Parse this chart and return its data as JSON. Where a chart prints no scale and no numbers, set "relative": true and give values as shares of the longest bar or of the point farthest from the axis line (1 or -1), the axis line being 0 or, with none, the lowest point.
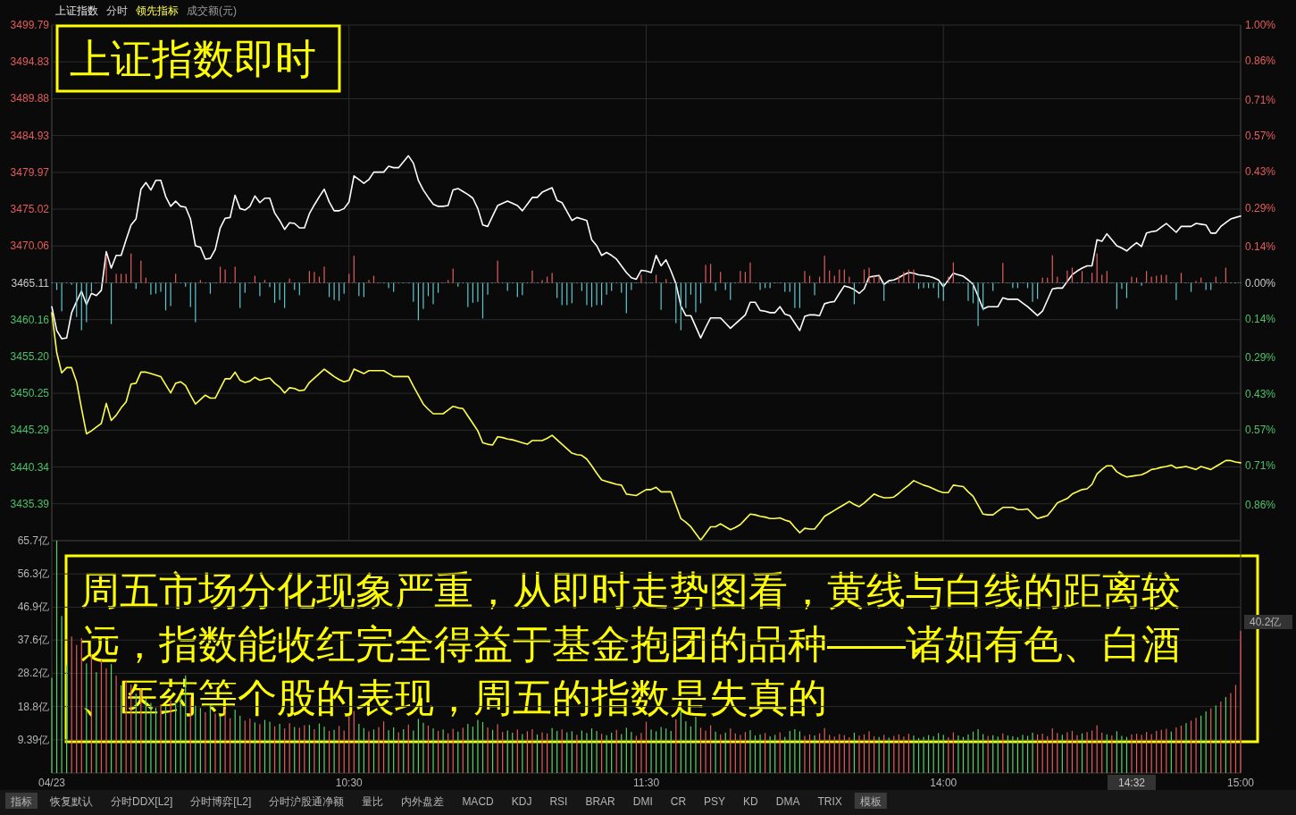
{
  "chart_data": [
    {
      "type": "line",
      "title": "上证指数即时",
      "subtitle": "分时",
      "grid": true,
      "tick_labels": "y",
      "categories": [
        null,
        null,
        null,
        null,
        null,
        null,
        null,
        null,
        null,
        null,
        null,
        null,
        null,
        null,
        null,
        null,
        null,
        null,
        null,
        null,
        null,
        null,
        null,
        null,
        null,
        null,
        null,
        null,
        null,
        null,
        null,
        null,
        null,
        null,
        null,
        null,
        null,
        null,
        null,
        null,
        null,
        null,
        null,
        null,
        null,
        null,
        null,
        null,
        null,
        null,
        null,
        null,
        null,
        null,
        null,
        null,
        null,
        null,
        null,
        null,
        null,
        null,
        null,
        null,
        null,
        null,
        null,
        null,
        null,
        null,
        null,
        null,
        null,
        null,
        null,
        null,
        null,
        null,
        null,
        null,
        null,
        null,
        null,
        null,
        null,
        null,
        null,
        null,
        null,
        null,
        null,
        null,
        null,
        null,
        null,
        null,
        null,
        null,
        null,
        null,
        null,
        null,
        null,
        null,
        null,
        null,
        null,
        null,
        null,
        null,
        null,
        null,
        null,
        null,
        null,
        null,
        null,
        null,
        null,
        null,
        null,
        null,
        null,
        null,
        null,
        null,
        null,
        null,
        null,
        null,
        null,
        null,
        null,
        null,
        null,
        null,
        null,
        null,
        null,
        null,
        null,
        null,
        null,
        null,
        null,
        null,
        null,
        null,
        null,
        null,
        null,
        null,
        null,
        null,
        null,
        null,
        null,
        null,
        null,
        null,
        null,
        null,
        null,
        null,
        null,
        null,
        null,
        null,
        null,
        null,
        null,
        null,
        null,
        null,
        null,
        null,
        null,
        null,
        null,
        null,
        null,
        null,
        null,
        null,
        null,
        null,
        null,
        null,
        null,
        null,
        null,
        null,
        null,
        null,
        null,
        null,
        null,
        null,
        null,
        null,
        null,
        null,
        null,
        null,
        null,
        null,
        null,
        null,
        null,
        null,
        null,
        null,
        null,
        null,
        null,
        null,
        null,
        null,
        null,
        null,
        null,
        null,
        null,
        null,
        null,
        null,
        null,
        null,
        null,
        null,
        null,
        null,
        null,
        null,
        null,
        null,
        null,
        null,
        null,
        null,
        null
      ],
      "ylim": [
        3430.43,
        3499.79
      ],
      "yticks": [
        3435.39,
        3440.34,
        3445.29,
        3450.25,
        {
          "value": 3455.2,
          "label": "3455.20"
        },
        3460.16,
        3465.11,
        3470.06,
        3475.02,
        3479.97,
        3484.93,
        3489.88,
        3494.83,
        3499.79
      ],
      "y2lim": [
        -1.0,
        1.0
      ],
      "y2ticks": [
        {
          "value": -0.86,
          "label": "0.86%"
        },
        {
          "value": -0.71,
          "label": "0.71%"
        },
        {
          "value": -0.57,
          "label": "0.57%"
        },
        {
          "value": -0.43,
          "label": "0.43%"
        },
        {
          "value": -0.29,
          "label": "0.29%"
        },
        {
          "value": -0.14,
          "label": "0.14%"
        },
        {
          "value": 0,
          "label": "0.00%"
        },
        {
          "value": 0.14,
          "label": "0.14%"
        },
        {
          "value": 0.29,
          "label": "0.29%"
        },
        {
          "value": 0.43,
          "label": "0.43%"
        },
        {
          "value": 0.57,
          "label": "0.57%"
        },
        {
          "value": 0.71,
          "label": "0.71%"
        },
        {
          "value": 0.86,
          "label": "0.86%"
        },
        {
          "value": 1.0,
          "label": "1.00%"
        }
      ],
      "annotations": [
        "周五市场分化现象严重，从即时走势图看，黄线与白线的距离较远，指数能收红完全得益于基金抱团的品种——诸如有色、白酒、医药等个股的表现，周五的指数是失真的",
        "成交额(元)"
      ],
      "series": [
        {
          "name": "上证指数",
          "color": "#ffffff",
          "values": [
            3461.9,
            3458.7,
            3457.6,
            3457.7,
            3461.1,
            3462.6,
            3464.0,
            3462.2,
            3463.7,
            3463.4,
            3464.1,
            3469.3,
            3467.1,
            3468.8,
            3468.8,
            3470.9,
            3472.9,
            3473.7,
            3477.7,
            3478.6,
            3477.6,
            3478.9,
            3478.9,
            3476.7,
            3475.4,
            3476.1,
            3475.4,
            3475.3,
            3473.7,
            3470.1,
            3469.9,
            3468.3,
            3468.4,
            3469.6,
            3472.5,
            3473.8,
            3473.9,
            3476.9,
            3475.1,
            3474.9,
            3475.4,
            3476.8,
            3475.9,
            3476.5,
            3476.5,
            3474.5,
            3473.5,
            3472.3,
            3473.2,
            3473.1,
            3472.5,
            3472.5,
            3474.4,
            3475.6,
            3476.7,
            3477.7,
            3476.0,
            3474.8,
            3474.8,
            3475.1,
            3476.0,
            3479.5,
            3479.0,
            3478.5,
            3479.0,
            3480.0,
            3480.0,
            3480.0,
            3480.8,
            3480.6,
            3480.6,
            3481.4,
            3482.2,
            3481.2,
            3478.9,
            3477.6,
            3476.6,
            3475.7,
            3475.4,
            3475.4,
            3475.5,
            3477.6,
            3477.8,
            3477.4,
            3477.0,
            3476.5,
            3475.1,
            3472.9,
            3472.7,
            3474.1,
            3475.5,
            3475.8,
            3476.1,
            3475.8,
            3475.5,
            3474.8,
            3475.7,
            3476.6,
            3476.6,
            3477.3,
            3477.6,
            3477.9,
            3476.2,
            3475.9,
            3474.7,
            3473.5,
            3473.9,
            3473.7,
            3473.5,
            3470.9,
            3470.1,
            3468.8,
            3469.2,
            3468.8,
            3468.3,
            3467.4,
            3466.5,
            3465.8,
            3465.6,
            3466.8,
            3466.7,
            3466.5,
            3468.8,
            3467.4,
            3468.2,
            3466.7,
            3465.0,
            3462.0,
            3460.7,
            3460.7,
            3459.2,
            3457.7,
            3459.1,
            3460.4,
            3460.4,
            3460.4,
            3459.7,
            3459.0,
            3459.6,
            3460.2,
            3460.8,
            3462.5,
            3462.5,
            3461.4,
            3461.3,
            3461.1,
            3461.1,
            3461.9,
            3460.9,
            3460.7,
            3459.7,
            3458.7,
            3460.6,
            3460.8,
            3460.8,
            3460.7,
            3462.3,
            3462.5,
            3462.6,
            3463.7,
            3464.7,
            3464.5,
            3464.2,
            3463.7,
            3464.3,
            3465.9,
            3466.0,
            3466.1,
            3464.9,
            3465.4,
            3465.5,
            3465.8,
            3466.2,
            3466.5,
            3466.4,
            3466.2,
            3466.1,
            3466.0,
            3465.8,
            3465.5,
            3464.6,
            3465.5,
            3466.4,
            3466.2,
            3466.0,
            3465.5,
            3464.9,
            3463.3,
            3461.6,
            3461.9,
            3461.9,
            3461.9,
            3463.1,
            3462.9,
            3462.9,
            3462.9,
            3462.4,
            3461.9,
            3461.3,
            3460.7,
            3461.3,
            3462.8,
            3464.3,
            3464.4,
            3464.4,
            3465.3,
            3466.2,
            3466.7,
            3467.1,
            3467.4,
            3467.4,
            3470.9,
            3470.7,
            3471.7,
            3470.9,
            3470.1,
            3469.8,
            3469.4,
            3470.0,
            3470.5,
            3470.0,
            3471.8,
            3472.0,
            3472.1,
            3472.6,
            3473.1,
            3472.5,
            3471.9,
            3472.7,
            3472.7,
            3472.7,
            3473.1,
            3473.0,
            3472.9,
            3471.8,
            3471.8,
            3472.7,
            3473.2,
            3473.7,
            3473.9,
            3474.1
          ]
        },
        {
          "name": "领先指标",
          "color": "#ffff4d",
          "values": [
            3461.1,
            3455.7,
            3453.0,
            3453.7,
            3453.7,
            3451.8,
            3448.2,
            3444.8,
            3445.2,
            3445.7,
            3446.2,
            3448.9,
            3446.6,
            3447.3,
            3448.3,
            3449.1,
            3451.5,
            3451.6,
            3453.1,
            3453.1,
            3452.9,
            3452.7,
            3452.5,
            3451.4,
            3450.3,
            3451.6,
            3451.8,
            3451.3,
            3450.0,
            3448.8,
            3449.4,
            3450.0,
            3449.6,
            3449.6,
            3450.9,
            3452.2,
            3452.2,
            3453.1,
            3452.0,
            3451.7,
            3451.9,
            3452.4,
            3452.0,
            3452.2,
            3452.3,
            3451.6,
            3451.1,
            3450.3,
            3451.0,
            3450.9,
            3450.6,
            3450.7,
            3451.7,
            3452.3,
            3452.9,
            3453.5,
            3453.0,
            3452.5,
            3452.1,
            3451.8,
            3452.0,
            3453.5,
            3453.2,
            3452.9,
            3453.3,
            3453.3,
            3453.3,
            3453.3,
            3452.9,
            3452.5,
            3452.5,
            3452.5,
            3452.5,
            3451.2,
            3450.0,
            3448.8,
            3448.1,
            3447.5,
            3447.5,
            3447.5,
            3448.0,
            3448.5,
            3448.3,
            3448.2,
            3447.2,
            3446.2,
            3445.2,
            3443.6,
            3443.4,
            3443.3,
            3444.4,
            3444.3,
            3444.1,
            3444.0,
            3443.8,
            3443.6,
            3443.4,
            3443.9,
            3443.9,
            3443.9,
            3444.2,
            3444.6,
            3444.0,
            3443.4,
            3442.8,
            3442.2,
            3442.0,
            3441.9,
            3441.4,
            3440.5,
            3439.5,
            3438.6,
            3438.4,
            3438.2,
            3438.0,
            3437.9,
            3436.7,
            3436.6,
            3436.5,
            3436.9,
            3437.3,
            3437.3,
            3437.6,
            3437.0,
            3437.0,
            3437.0,
            3435.2,
            3433.4,
            3432.9,
            3432.3,
            3431.4,
            3430.5,
            3431.4,
            3432.3,
            3432.3,
            3432.7,
            3432.3,
            3431.9,
            3432.2,
            3432.6,
            3433.3,
            3434.0,
            3433.9,
            3433.7,
            3433.6,
            3433.4,
            3433.4,
            3433.5,
            3433.2,
            3433.0,
            3432.2,
            3431.5,
            3432.1,
            3432.0,
            3432.0,
            3432.8,
            3433.7,
            3434.1,
            3434.5,
            3434.9,
            3435.3,
            3435.7,
            3435.3,
            3435.0,
            3435.5,
            3436.1,
            3436.7,
            3436.4,
            3436.2,
            3436.2,
            3436.3,
            3436.8,
            3437.4,
            3437.9,
            3438.5,
            3438.2,
            3437.9,
            3437.7,
            3437.4,
            3437.1,
            3436.9,
            3436.9,
            3437.9,
            3437.8,
            3437.7,
            3437.0,
            3436.4,
            3435.2,
            3434.0,
            3433.9,
            3433.9,
            3434.4,
            3434.9,
            3434.9,
            3434.9,
            3434.6,
            3434.6,
            3434.7,
            3434.0,
            3433.4,
            3433.6,
            3433.8,
            3434.6,
            3435.5,
            3435.8,
            3436.1,
            3436.7,
            3437.0,
            3437.3,
            3437.4,
            3438.0,
            3439.4,
            3440.0,
            3440.5,
            3440.5,
            3439.7,
            3439.3,
            3439.0,
            3439.1,
            3439.2,
            3439.3,
            3439.6,
            3440.0,
            3440.1,
            3440.3,
            3440.4,
            3440.6,
            3440.2,
            3440.3,
            3440.4,
            3440.2,
            3440.0,
            3440.4,
            3440.2,
            3440.0,
            3440.4,
            3440.8,
            3441.2,
            3441.2,
            3441.0,
            3440.9
          ]
        }
      ]
    },
    {
      "type": "bar",
      "relative": true,
      "categories": [
        null,
        null,
        null,
        null,
        null,
        null,
        null,
        null,
        null,
        null,
        null,
        null,
        null,
        null,
        null,
        null,
        null,
        null,
        null,
        null,
        null,
        null,
        null,
        null,
        null,
        null,
        null,
        null,
        null,
        null,
        null,
        null,
        null,
        null,
        null,
        null,
        null,
        null,
        null,
        null,
        null,
        null,
        null,
        null,
        null,
        null,
        null,
        null,
        null,
        null,
        null,
        null,
        null,
        null,
        null,
        null,
        null,
        null,
        null,
        null,
        null,
        null,
        null,
        null,
        null,
        null,
        null,
        null,
        null,
        null,
        null,
        null,
        null,
        null,
        null,
        null,
        null,
        null,
        null,
        null,
        null,
        null,
        null,
        null,
        null,
        null,
        null,
        null,
        null,
        null,
        null,
        null,
        null,
        null,
        null,
        null,
        null,
        null,
        null,
        null,
        null,
        null,
        null,
        null,
        null,
        null,
        null,
        null,
        null,
        null,
        null,
        null,
        null,
        null,
        null,
        null,
        null,
        null,
        null,
        null,
        null,
        null,
        null,
        null,
        null,
        null,
        null,
        null,
        null,
        null,
        null,
        null,
        null,
        null,
        null,
        null,
        null,
        null,
        null,
        null,
        null,
        null,
        null,
        null,
        null,
        null,
        null,
        null,
        null,
        null,
        null,
        null,
        null,
        null,
        null,
        null,
        null,
        null,
        null,
        null,
        null,
        null,
        null,
        null,
        null,
        null,
        null,
        null,
        null,
        null,
        null,
        null,
        null,
        null,
        null,
        null,
        null,
        null,
        null,
        null,
        null,
        null,
        null,
        null,
        null,
        null,
        null,
        null,
        null,
        null,
        null,
        null,
        null,
        null,
        null,
        null,
        null,
        null,
        null,
        null,
        null,
        null,
        null,
        null,
        null,
        null,
        null,
        null,
        null,
        null,
        null,
        null,
        null,
        null,
        null,
        null,
        null,
        null,
        null,
        null,
        null,
        null,
        null,
        null,
        null,
        null,
        null,
        null,
        null,
        null,
        null,
        null,
        null,
        null,
        null,
        null,
        null,
        null,
        null,
        null,
        null
      ],
      "values": [
        0,
        -0.15,
        -0.6,
        0,
        -0.04,
        -0.72,
        -1,
        -0.83,
        -0.19,
        0,
        0,
        0.57,
        -0.87,
        0.19,
        0.19,
        0.19,
        0.62,
        -0.13,
        0.47,
        0.11,
        -0.25,
        -0.23,
        -0.19,
        -0.58,
        -0.49,
        0.19,
        0,
        -0.08,
        -0.51,
        -0.83,
        0.06,
        0,
        -0.23,
        0,
        0.34,
        0.28,
        0,
        0.34,
        -0.53,
        -0.21,
        0,
        0.15,
        -0.28,
        0.06,
        -0.09,
        -0.42,
        -0.36,
        -0.53,
        0.09,
        -0.15,
        -0.26,
        0,
        0.25,
        0.23,
        0.13,
        0.34,
        -0.3,
        -0.36,
        -0.38,
        -0.23,
        0.19,
        0.57,
        -0.28,
        -0.3,
        0.06,
        0.15,
        0,
        0,
        -0.11,
        -0.19,
        0,
        0,
        0,
        -0.4,
        -0.79,
        -0.55,
        -0.28,
        -0.45,
        -0.21,
        0,
        0.06,
        0.3,
        -0.08,
        0,
        -0.51,
        -0.42,
        -0.4,
        -0.75,
        -0.25,
        0,
        0.47,
        0,
        -0.17,
        0,
        -0.3,
        -0.26,
        0,
        0.26,
        0,
        0.06,
        0.13,
        0.21,
        -0.32,
        -0.47,
        -0.47,
        -0.43,
        0,
        -0.17,
        -0.47,
        -0.51,
        -0.47,
        -0.47,
        -0.25,
        -0.17,
        0,
        -0.21,
        -0.64,
        -0.15,
        0,
        0.17,
        0,
        0,
        0.17,
        -0.57,
        0.08,
        0,
        -0.85,
        -1,
        -0.53,
        -0.25,
        -0.62,
        -0.43,
        0.38,
        0.4,
        -0.17,
        0.23,
        -0.15,
        -0.36,
        0,
        0.25,
        0.23,
        0.43,
        0,
        -0.15,
        -0.11,
        -0.11,
        0,
        0,
        -0.19,
        -0.19,
        -0.53,
        -0.53,
        0.25,
        0.15,
        -0.26,
        0.13,
        0.57,
        0.26,
        0.15,
        0.28,
        0.28,
        0.13,
        -0.45,
        0,
        0.28,
        0.32,
        0.15,
        0.15,
        -0.38,
        0,
        0,
        0.15,
        0.23,
        0.28,
        0.28,
        -0.13,
        -0.11,
        -0.11,
        -0.11,
        -0.32,
        -0.38,
        0.13,
        0.43,
        0,
        0,
        -0.38,
        -0.43,
        -0.91,
        -0.58,
        0,
        -0.17,
        0,
        0.42,
        0,
        -0.11,
        -0.11,
        0,
        -0.11,
        -0.4,
        -0.34,
        0.11,
        0.11,
        0.58,
        0.13,
        0,
        0.26,
        0.32,
        0,
        0.25,
        0,
        0.21,
        0.62,
        0.17,
        0.25,
        0,
        -0.55,
        -0.13,
        -0.32,
        0.13,
        0.11,
        -0.06,
        0.25,
        0.13,
        0.15,
        0.17,
        0.17,
        0,
        -0.36,
        0.21,
        0,
        -0.19,
        0.04,
        0.11,
        -0.15,
        -0.15,
        0.13,
        0,
        0.32,
        0,
        0,
        0
      ],
      "colors": [
        "#5fc8cf",
        "#5fc8cf",
        "#5fc8cf",
        "#5fc8cf",
        "#5fc8cf",
        "#5fc8cf",
        "#5fc8cf",
        "#5fc8cf",
        "#5fc8cf",
        "#5fc8cf",
        "#5fc8cf",
        "#e35d5d",
        "#5fc8cf",
        "#e35d5d",
        "#e35d5d",
        "#e35d5d",
        "#e35d5d",
        "#5fc8cf",
        "#e35d5d",
        "#e35d5d",
        "#5fc8cf",
        "#5fc8cf",
        "#5fc8cf",
        "#5fc8cf",
        "#5fc8cf",
        "#e35d5d",
        "#5fc8cf",
        "#5fc8cf",
        "#5fc8cf",
        "#5fc8cf",
        "#e35d5d",
        "#5fc8cf",
        "#5fc8cf",
        "#5fc8cf",
        "#e35d5d",
        "#e35d5d",
        "#5fc8cf",
        "#e35d5d",
        "#5fc8cf",
        "#5fc8cf",
        "#5fc8cf",
        "#e35d5d",
        "#5fc8cf",
        "#e35d5d",
        "#5fc8cf",
        "#5fc8cf",
        "#5fc8cf",
        "#5fc8cf",
        "#e35d5d",
        "#5fc8cf",
        "#5fc8cf",
        "#5fc8cf",
        "#e35d5d",
        "#e35d5d",
        "#e35d5d",
        "#e35d5d",
        "#5fc8cf",
        "#5fc8cf",
        "#5fc8cf",
        "#5fc8cf",
        "#e35d5d",
        "#e35d5d",
        "#5fc8cf",
        "#5fc8cf",
        "#e35d5d",
        "#e35d5d",
        "#5fc8cf",
        "#5fc8cf",
        "#5fc8cf",
        "#5fc8cf",
        "#5fc8cf",
        "#5fc8cf",
        "#5fc8cf",
        "#5fc8cf",
        "#5fc8cf",
        "#5fc8cf",
        "#5fc8cf",
        "#5fc8cf",
        "#5fc8cf",
        "#5fc8cf",
        "#e35d5d",
        "#e35d5d",
        "#5fc8cf",
        "#5fc8cf",
        "#5fc8cf",
        "#5fc8cf",
        "#5fc8cf",
        "#5fc8cf",
        "#5fc8cf",
        "#5fc8cf",
        "#e35d5d",
        "#5fc8cf",
        "#5fc8cf",
        "#5fc8cf",
        "#5fc8cf",
        "#5fc8cf",
        "#5fc8cf",
        "#e35d5d",
        "#5fc8cf",
        "#e35d5d",
        "#e35d5d",
        "#e35d5d",
        "#5fc8cf",
        "#5fc8cf",
        "#5fc8cf",
        "#5fc8cf",
        "#5fc8cf",
        "#5fc8cf",
        "#5fc8cf",
        "#5fc8cf",
        "#5fc8cf",
        "#5fc8cf",
        "#5fc8cf",
        "#5fc8cf",
        "#5fc8cf",
        "#5fc8cf",
        "#5fc8cf",
        "#5fc8cf",
        "#5fc8cf",
        "#e35d5d",
        "#5fc8cf",
        "#5fc8cf",
        "#e35d5d",
        "#5fc8cf",
        "#e35d5d",
        "#5fc8cf",
        "#5fc8cf",
        "#5fc8cf",
        "#5fc8cf",
        "#5fc8cf",
        "#5fc8cf",
        "#5fc8cf",
        "#e35d5d",
        "#e35d5d",
        "#5fc8cf",
        "#e35d5d",
        "#5fc8cf",
        "#5fc8cf",
        "#5fc8cf",
        "#e35d5d",
        "#e35d5d",
        "#e35d5d",
        "#5fc8cf",
        "#5fc8cf",
        "#5fc8cf",
        "#5fc8cf",
        "#5fc8cf",
        "#5fc8cf",
        "#5fc8cf",
        "#5fc8cf",
        "#5fc8cf",
        "#5fc8cf",
        "#e35d5d",
        "#e35d5d",
        "#5fc8cf",
        "#e35d5d",
        "#e35d5d",
        "#e35d5d",
        "#e35d5d",
        "#e35d5d",
        "#e35d5d",
        "#e35d5d",
        "#5fc8cf",
        "#5fc8cf",
        "#e35d5d",
        "#e35d5d",
        "#e35d5d",
        "#e35d5d",
        "#5fc8cf",
        "#5fc8cf",
        "#5fc8cf",
        "#e35d5d",
        "#e35d5d",
        "#e35d5d",
        "#e35d5d",
        "#5fc8cf",
        "#5fc8cf",
        "#5fc8cf",
        "#5fc8cf",
        "#5fc8cf",
        "#5fc8cf",
        "#e35d5d",
        "#e35d5d",
        "#5fc8cf",
        "#5fc8cf",
        "#5fc8cf",
        "#5fc8cf",
        "#5fc8cf",
        "#5fc8cf",
        "#5fc8cf",
        "#5fc8cf",
        "#5fc8cf",
        "#e35d5d",
        "#5fc8cf",
        "#5fc8cf",
        "#5fc8cf",
        "#5fc8cf",
        "#5fc8cf",
        "#5fc8cf",
        "#5fc8cf",
        "#e35d5d",
        "#e35d5d",
        "#e35d5d",
        "#e35d5d",
        "#5fc8cf",
        "#e35d5d",
        "#e35d5d",
        "#5fc8cf",
        "#e35d5d",
        "#5fc8cf",
        "#e35d5d",
        "#e35d5d",
        "#e35d5d",
        "#e35d5d",
        "#5fc8cf",
        "#5fc8cf",
        "#5fc8cf",
        "#5fc8cf",
        "#e35d5d",
        "#e35d5d",
        "#5fc8cf",
        "#e35d5d",
        "#e35d5d",
        "#e35d5d",
        "#e35d5d",
        "#e35d5d",
        "#5fc8cf",
        "#5fc8cf",
        "#e35d5d",
        "#5fc8cf",
        "#5fc8cf",
        "#e35d5d",
        "#e35d5d",
        "#5fc8cf",
        "#5fc8cf",
        "#e35d5d",
        "#5fc8cf",
        "#e35d5d",
        "#5fc8cf",
        "#5fc8cf",
        "#5fc8cf"
      ]
    },
    {
      "type": "bar",
      "grid": "y",
      "categories": [
        "04/23",
        null,
        null,
        null,
        null,
        null,
        null,
        null,
        null,
        null,
        null,
        null,
        null,
        null,
        null,
        null,
        null,
        null,
        null,
        null,
        null,
        null,
        null,
        null,
        null,
        null,
        null,
        null,
        null,
        null,
        null,
        null,
        null,
        null,
        null,
        null,
        null,
        null,
        null,
        null,
        null,
        null,
        null,
        null,
        null,
        null,
        null,
        null,
        null,
        null,
        null,
        null,
        null,
        null,
        null,
        null,
        null,
        null,
        null,
        null,
        "10:30",
        null,
        null,
        null,
        null,
        null,
        null,
        null,
        null,
        null,
        null,
        null,
        null,
        null,
        null,
        null,
        null,
        null,
        null,
        null,
        null,
        null,
        null,
        null,
        null,
        null,
        null,
        null,
        null,
        null,
        null,
        null,
        null,
        null,
        null,
        null,
        null,
        null,
        null,
        null,
        null,
        null,
        null,
        null,
        null,
        null,
        null,
        null,
        null,
        null,
        null,
        null,
        null,
        null,
        null,
        null,
        null,
        null,
        null,
        null,
        "11:30",
        null,
        null,
        null,
        null,
        null,
        null,
        null,
        null,
        null,
        null,
        null,
        null,
        null,
        null,
        null,
        null,
        null,
        null,
        null,
        null,
        null,
        null,
        null,
        null,
        null,
        null,
        null,
        null,
        null,
        null,
        null,
        null,
        null,
        null,
        null,
        null,
        null,
        null,
        null,
        null,
        null,
        null,
        null,
        null,
        null,
        null,
        null,
        null,
        null,
        null,
        null,
        null,
        null,
        null,
        null,
        null,
        null,
        null,
        null,
        "14:00",
        null,
        null,
        null,
        null,
        null,
        null,
        null,
        null,
        null,
        null,
        null,
        null,
        null,
        null,
        null,
        null,
        null,
        null,
        null,
        null,
        null,
        null,
        null,
        null,
        null,
        null,
        null,
        null,
        null,
        null,
        null,
        null,
        null,
        null,
        null,
        null,
        null,
        null,
        null,
        null,
        null,
        null,
        null,
        null,
        null,
        null,
        null,
        null,
        null,
        null,
        null,
        null,
        null,
        null,
        null,
        null,
        null,
        null,
        null,
        "15:00"
      ],
      "ylim": [
        0,
        65.7
      ],
      "yticks": [
        {
          "value": 9.39,
          "label": "9.39亿"
        },
        {
          "value": 18.8,
          "label": "18.8亿"
        },
        {
          "value": 28.2,
          "label": "28.2亿"
        },
        {
          "value": 37.6,
          "label": "37.6亿"
        },
        {
          "value": 46.9,
          "label": "46.9亿"
        },
        {
          "value": 56.3,
          "label": "56.3亿"
        },
        {
          "value": 65.7,
          "label": "65.7亿"
        }
      ],
      "annotations": [
        "40.2亿",
        "14:32",
        "指标",
        "恢复默认",
        "分时DDX[L2]",
        "分时博弈[L2]",
        "分时沪股通净额",
        "量比",
        "内外盘差",
        "MACD",
        "KDJ",
        "RSI",
        "BRAR",
        "DMI",
        "CR",
        "PSY",
        "KD",
        "DMA",
        "TRIX",
        "模板"
      ],
      "values": [
        26.9,
        65.7,
        44.4,
        30.5,
        38.6,
        36.2,
        38.2,
        31.0,
        33.6,
        28.5,
        32.0,
        29.6,
        30.8,
        27.5,
        24.8,
        26.1,
        25.0,
        22.4,
        23.9,
        21.0,
        19.8,
        18.5,
        19.4,
        18.9,
        20.5,
        19.9,
        22.0,
        27.6,
        21.5,
        19.0,
        18.4,
        17.2,
        19.2,
        16.8,
        16.0,
        18.1,
        15.5,
        17.9,
        16.2,
        14.8,
        15.4,
        14.3,
        13.8,
        15.0,
        14.5,
        13.2,
        13.9,
        12.6,
        14.1,
        13.0,
        12.8,
        13.5,
        13.6,
        12.4,
        14.0,
        13.1,
        11.9,
        12.2,
        13.3,
        12.0,
        16.2,
        17.5,
        13.9,
        12.7,
        11.8,
        12.3,
        13.0,
        14.6,
        12.1,
        12.9,
        11.5,
        12.4,
        13.7,
        12.0,
        15.3,
        14.2,
        13.4,
        12.6,
        11.9,
        12.3,
        11.2,
        12.5,
        11.7,
        12.8,
        13.9,
        13.1,
        15.0,
        14.4,
        12.9,
        12.2,
        13.8,
        11.6,
        12.0,
        11.4,
        12.3,
        11.0,
        11.8,
        12.4,
        10.9,
        11.5,
        11.2,
        12.7,
        11.9,
        12.3,
        11.5,
        11.8,
        10.8,
        12.0,
        11.3,
        12.6,
        11.9,
        11.1,
        10.7,
        11.4,
        12.2,
        11.0,
        12.8,
        11.6,
        10.5,
        11.3,
        14.5,
        12.3,
        11.8,
        13.0,
        12.6,
        11.9,
        15.2,
        17.8,
        14.6,
        13.2,
        15.9,
        12.8,
        12.0,
        13.5,
        11.7,
        10.9,
        11.4,
        12.6,
        11.2,
        10.8,
        11.6,
        12.1,
        10.6,
        10.9,
        11.3,
        10.4,
        10.8,
        11.5,
        10.2,
        11.9,
        12.4,
        11.8,
        10.5,
        10.9,
        10.6,
        11.2,
        12.7,
        10.8,
        10.3,
        11.0,
        10.7,
        10.1,
        11.4,
        10.6,
        10.9,
        11.8,
        10.4,
        10.2,
        10.8,
        10.0,
        10.5,
        10.9,
        10.3,
        11.1,
        10.6,
        9.9,
        10.2,
        10.7,
        10.4,
        11.3,
        10.8,
        10.1,
        11.5,
        10.6,
        10.2,
        10.9,
        11.7,
        12.4,
        11.0,
        10.5,
        10.7,
        10.3,
        11.2,
        10.6,
        10.4,
        10.1,
        10.8,
        10.5,
        11.4,
        10.9,
        11.1,
        10.4,
        12.6,
        11.3,
        10.8,
        11.5,
        11.9,
        10.7,
        11.2,
        11.6,
        12.0,
        13.5,
        11.4,
        10.9,
        10.6,
        11.8,
        10.5,
        10.2,
        10.9,
        11.1,
        10.8,
        11.6,
        11.0,
        11.9,
        12.2,
        12.5,
        11.7,
        12.9,
        13.4,
        14.1,
        14.8,
        15.6,
        16.2,
        17.4,
        18.3,
        19.1,
        20.2,
        21.5,
        22.6,
        24.9,
        40.2
      ],
      "colors": [
        "#5ccf6a",
        "#5ccf6a",
        "#5ccf6a",
        "#5ccf6a",
        "#e05c5c",
        "#e05c5c",
        "#e05c5c",
        "#5ccf6a",
        "#e05c5c",
        "#5ccf6a",
        "#e05c5c",
        "#e05c5c",
        "#5ccf6a",
        "#e05c5c",
        "#5ccf6a",
        "#e05c5c",
        "#e05c5c",
        "#5ccf6a",
        "#e05c5c",
        "#5ccf6a",
        "#5ccf6a",
        "#5ccf6a",
        "#e05c5c",
        "#5ccf6a",
        "#e05c5c",
        "#5ccf6a",
        "#5ccf6a",
        "#5ccf6a",
        "#e05c5c",
        "#5ccf6a",
        "#5ccf6a",
        "#e05c5c",
        "#5ccf6a",
        "#e05c5c",
        "#5ccf6a",
        "#e05c5c",
        "#e05c5c",
        "#5ccf6a",
        "#5ccf6a",
        "#e05c5c",
        "#e05c5c",
        "#5ccf6a",
        "#e05c5c",
        "#5ccf6a",
        "#5ccf6a",
        "#e05c5c",
        "#5ccf6a",
        "#e05c5c",
        "#e05c5c",
        "#5ccf6a",
        "#e05c5c",
        "#e05c5c",
        "#5ccf6a",
        "#e05c5c",
        "#5ccf6a",
        "#5ccf6a",
        "#e05c5c",
        "#5ccf6a",
        "#e05c5c",
        "#e05c5c",
        "#e05c5c",
        "#e05c5c",
        "#5ccf6a",
        "#5ccf6a",
        "#e05c5c",
        "#5ccf6a",
        "#e05c5c",
        "#e05c5c",
        "#5ccf6a",
        "#5ccf6a",
        "#e05c5c",
        "#5ccf6a",
        "#e05c5c",
        "#5ccf6a",
        "#5ccf6a",
        "#5ccf6a",
        "#e05c5c",
        "#5ccf6a",
        "#e05c5c",
        "#5ccf6a",
        "#e05c5c",
        "#e05c5c",
        "#5ccf6a",
        "#e05c5c",
        "#5ccf6a",
        "#5ccf6a",
        "#5ccf6a",
        "#5ccf6a",
        "#e05c5c",
        "#5ccf6a",
        "#e05c5c",
        "#e05c5c",
        "#5ccf6a",
        "#5ccf6a",
        "#e05c5c",
        "#5ccf6a",
        "#e05c5c",
        "#e05c5c",
        "#5ccf6a",
        "#e05c5c",
        "#e05c5c",
        "#5ccf6a",
        "#5ccf6a",
        "#e05c5c",
        "#5ccf6a",
        "#5ccf6a",
        "#e05c5c",
        "#5ccf6a",
        "#5ccf6a",
        "#5ccf6a",
        "#5ccf6a",
        "#e05c5c",
        "#5ccf6a",
        "#5ccf6a",
        "#e05c5c",
        "#5ccf6a",
        "#5ccf6a",
        "#5ccf6a",
        "#e05c5c",
        "#e05c5c",
        "#e05c5c",
        "#5ccf6a",
        "#5ccf6a",
        "#5ccf6a",
        "#5ccf6a",
        "#5ccf6a",
        "#e05c5c",
        "#5ccf6a",
        "#5ccf6a",
        "#5ccf6a",
        "#5ccf6a",
        "#e05c5c",
        "#e05c5c",
        "#e05c5c",
        "#5ccf6a",
        "#e05c5c",
        "#5ccf6a",
        "#e05c5c",
        "#e05c5c",
        "#e05c5c",
        "#e05c5c",
        "#5ccf6a",
        "#5ccf6a",
        "#5ccf6a",
        "#e05c5c",
        "#5ccf6a",
        "#5ccf6a",
        "#e05c5c",
        "#5ccf6a",
        "#5ccf6a",
        "#5ccf6a",
        "#5ccf6a",
        "#e05c5c",
        "#e05c5c",
        "#5ccf6a",
        "#e05c5c",
        "#e05c5c",
        "#e05c5c",
        "#e05c5c",
        "#e05c5c",
        "#e05c5c",
        "#e05c5c",
        "#5ccf6a",
        "#e05c5c",
        "#e05c5c",
        "#e05c5c",
        "#e05c5c",
        "#5ccf6a",
        "#e05c5c",
        "#5ccf6a",
        "#e05c5c",
        "#e05c5c",
        "#e05c5c",
        "#e05c5c",
        "#5ccf6a",
        "#5ccf6a",
        "#5ccf6a",
        "#5ccf6a",
        "#5ccf6a",
        "#5ccf6a",
        "#5ccf6a",
        "#e05c5c",
        "#e05c5c",
        "#5ccf6a",
        "#5ccf6a",
        "#5ccf6a",
        "#5ccf6a",
        "#5ccf6a",
        "#5ccf6a",
        "#e05c5c",
        "#5ccf6a",
        "#5ccf6a",
        "#e05c5c",
        "#5ccf6a",
        "#5ccf6a",
        "#5ccf6a",
        "#5ccf6a",
        "#5ccf6a",
        "#5ccf6a",
        "#e05c5c",
        "#e05c5c",
        "#e05c5c",
        "#e05c5c",
        "#e05c5c",
        "#5ccf6a",
        "#e05c5c",
        "#e05c5c",
        "#e05c5c",
        "#5ccf6a",
        "#e05c5c",
        "#e05c5c",
        "#e05c5c",
        "#e05c5c",
        "#5ccf6a",
        "#e05c5c",
        "#5ccf6a",
        "#5ccf6a",
        "#5ccf6a",
        "#e05c5c",
        "#e05c5c",
        "#e05c5c",
        "#e05c5c",
        "#e05c5c",
        "#e05c5c",
        "#e05c5c",
        "#e05c5c",
        "#5ccf6a",
        "#e05c5c",
        "#e05c5c",
        "#5ccf6a",
        "#e05c5c",
        "#e05c5c",
        "#5ccf6a",
        "#5ccf6a",
        "#e05c5c",
        "#5ccf6a",
        "#e05c5c",
        "#5ccf6a",
        "#e05c5c",
        "#e05c5c",
        "#e05c5c"
      ]
    }
  ]
}
